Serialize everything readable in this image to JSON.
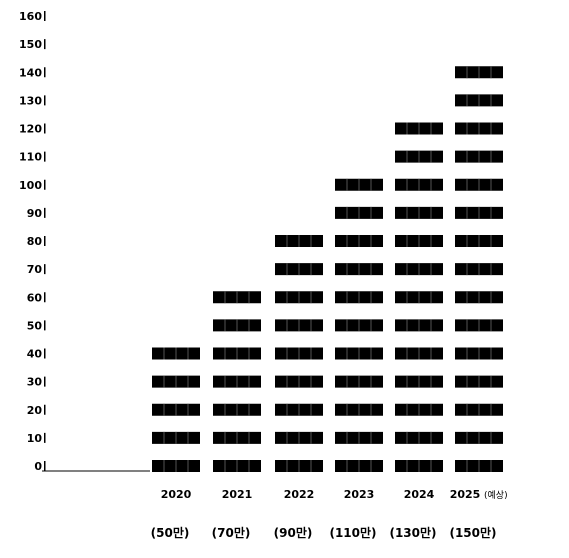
{
  "chart_data": {
    "type": "bar",
    "title": "",
    "xlabel": "",
    "ylabel": "",
    "ylim": [
      0,
      160
    ],
    "yticks": [
      0,
      10,
      20,
      30,
      40,
      50,
      60,
      70,
      80,
      90,
      100,
      110,
      120,
      130,
      140,
      150,
      160
    ],
    "categories": [
      "2020",
      "2021",
      "2022",
      "2023",
      "2024",
      "2025"
    ],
    "category_notes": [
      "",
      "",
      "",
      "",
      "",
      "(예상)"
    ],
    "sublabels": [
      "(50만)",
      "(70만)",
      "(90만)",
      "(110만)",
      "(130만)",
      "(150만)"
    ],
    "values": [
      50,
      70,
      90,
      110,
      130,
      150
    ],
    "bar_style": "stacked blocks, one block per 10 units",
    "bar_color": "#000000",
    "grid": false,
    "legend": "none"
  }
}
